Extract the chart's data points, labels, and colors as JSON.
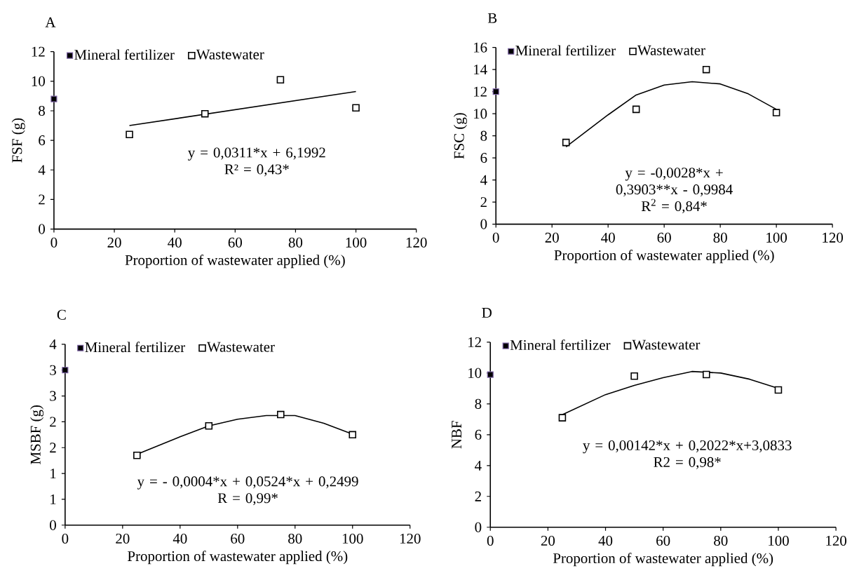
{
  "chart_data": [
    {
      "type": "scatter",
      "title": "A",
      "xlabel": "Proportion of wastewater applied (%)",
      "ylabel": "FSF (g)",
      "xlim": [
        0,
        120
      ],
      "xticks": [
        0,
        20,
        40,
        60,
        80,
        100,
        120
      ],
      "ylim": [
        0,
        12
      ],
      "yticks": [
        0,
        2,
        4,
        6,
        8,
        10,
        12
      ],
      "legend": "top left",
      "series": [
        {
          "name": "Mineral fertilizer",
          "color": "#7b62a3",
          "marker": "square",
          "x": [
            0
          ],
          "values": [
            8.8
          ]
        },
        {
          "name": "Wastewater",
          "color": "#000000",
          "marker": "square",
          "x": [
            25,
            50,
            75,
            100
          ],
          "values": [
            6.4,
            7.8,
            10.1,
            8.2
          ]
        },
        {
          "type": "line",
          "color": "#000000",
          "marker": "none",
          "x": [
            25,
            100
          ],
          "values": [
            7.0,
            9.3
          ]
        }
      ],
      "annotations": [
        "y = 0,0311*x + 6,1992",
        "R² = 0,43*"
      ]
    },
    {
      "type": "scatter",
      "title": "B",
      "xlabel": "Proportion of wastewater applied (%)",
      "ylabel": "FSC (g)",
      "xlim": [
        0,
        120
      ],
      "xticks": [
        0,
        20,
        40,
        60,
        80,
        100,
        120
      ],
      "ylim": [
        0,
        16
      ],
      "yticks": [
        0,
        2,
        4,
        6,
        8,
        10,
        12,
        14,
        16
      ],
      "legend": "top left",
      "series": [
        {
          "name": "Mineral fertilizer",
          "color": "#7b62a3",
          "marker": "square",
          "x": [
            0
          ],
          "values": [
            12.0
          ]
        },
        {
          "name": "Wastewater",
          "color": "#000000",
          "marker": "square",
          "x": [
            25,
            50,
            75,
            100
          ],
          "values": [
            7.4,
            10.4,
            14.0,
            10.1
          ]
        },
        {
          "type": "line",
          "color": "#000000",
          "marker": "none",
          "x": [
            25,
            40,
            50,
            60,
            70,
            80,
            90,
            100
          ],
          "values": [
            7.0,
            9.9,
            11.7,
            12.6,
            12.9,
            12.7,
            11.8,
            10.4
          ]
        }
      ],
      "annotations": [
        "y = -0,0028*x + 0,3903**x - 0,9984",
        "R$^{2}$ = 0,84*"
      ]
    },
    {
      "type": "scatter",
      "title": "C",
      "xlabel": "Proportion of wastewater applied (%)",
      "ylabel": "MSBF (g)",
      "xlim": [
        0,
        120
      ],
      "xticks": [
        0,
        20,
        40,
        60,
        80,
        100,
        120
      ],
      "ylim": [
        0,
        3.5
      ],
      "yticks": [
        {
          "value": 0,
          "label": "0"
        },
        {
          "value": 0.5,
          "label": "1"
        },
        {
          "value": 1,
          "label": "1"
        },
        {
          "value": 1.5,
          "label": "2"
        },
        {
          "value": 2,
          "label": "2"
        },
        {
          "value": 2.5,
          "label": "3"
        },
        {
          "value": 3,
          "label": "3"
        },
        {
          "value": 3.5,
          "label": "4"
        }
      ],
      "legend": "top left",
      "series": [
        {
          "name": "Mineral fertilizer",
          "color": "#7b62a3",
          "marker": "square",
          "x": [
            0
          ],
          "values": [
            3.0
          ]
        },
        {
          "name": "Wastewater",
          "color": "#000000",
          "marker": "square",
          "x": [
            25,
            50,
            75,
            100
          ],
          "values": [
            1.35,
            1.92,
            2.14,
            1.75
          ]
        },
        {
          "type": "line",
          "color": "#000000",
          "marker": "none",
          "x": [
            25,
            40,
            50,
            60,
            70,
            80,
            90,
            100
          ],
          "values": [
            1.37,
            1.71,
            1.92,
            2.05,
            2.12,
            2.12,
            1.97,
            1.76
          ]
        }
      ],
      "annotations": [
        "y = - 0,0004*x + 0,0524*x + 0,2499",
        "R = 0,99*"
      ]
    },
    {
      "type": "scatter",
      "title": "D",
      "xlabel": "Proportion of wastewater applied (%)",
      "ylabel": "NBF",
      "xlim": [
        0,
        120
      ],
      "xticks": [
        0,
        20,
        40,
        60,
        80,
        100,
        120
      ],
      "ylim": [
        0,
        12
      ],
      "yticks": [
        0,
        2,
        4,
        6,
        8,
        10,
        12
      ],
      "legend": "top left",
      "series": [
        {
          "name": "Mineral fertilizer",
          "color": "#7b62a3",
          "marker": "square",
          "x": [
            0
          ],
          "values": [
            9.9
          ]
        },
        {
          "name": "Wastewater",
          "color": "#000000",
          "marker": "square",
          "x": [
            25,
            50,
            75,
            100
          ],
          "values": [
            7.1,
            9.8,
            9.9,
            8.9
          ]
        },
        {
          "type": "line",
          "color": "#000000",
          "marker": "none",
          "x": [
            25,
            40,
            50,
            60,
            70,
            80,
            90,
            100
          ],
          "values": [
            7.3,
            8.6,
            9.2,
            9.7,
            10.1,
            10.0,
            9.6,
            9.0
          ]
        }
      ],
      "annotations": [
        "y = 0,00142*x + 0,2022*x+3,0833",
        "R2 = 0,98*"
      ]
    }
  ]
}
